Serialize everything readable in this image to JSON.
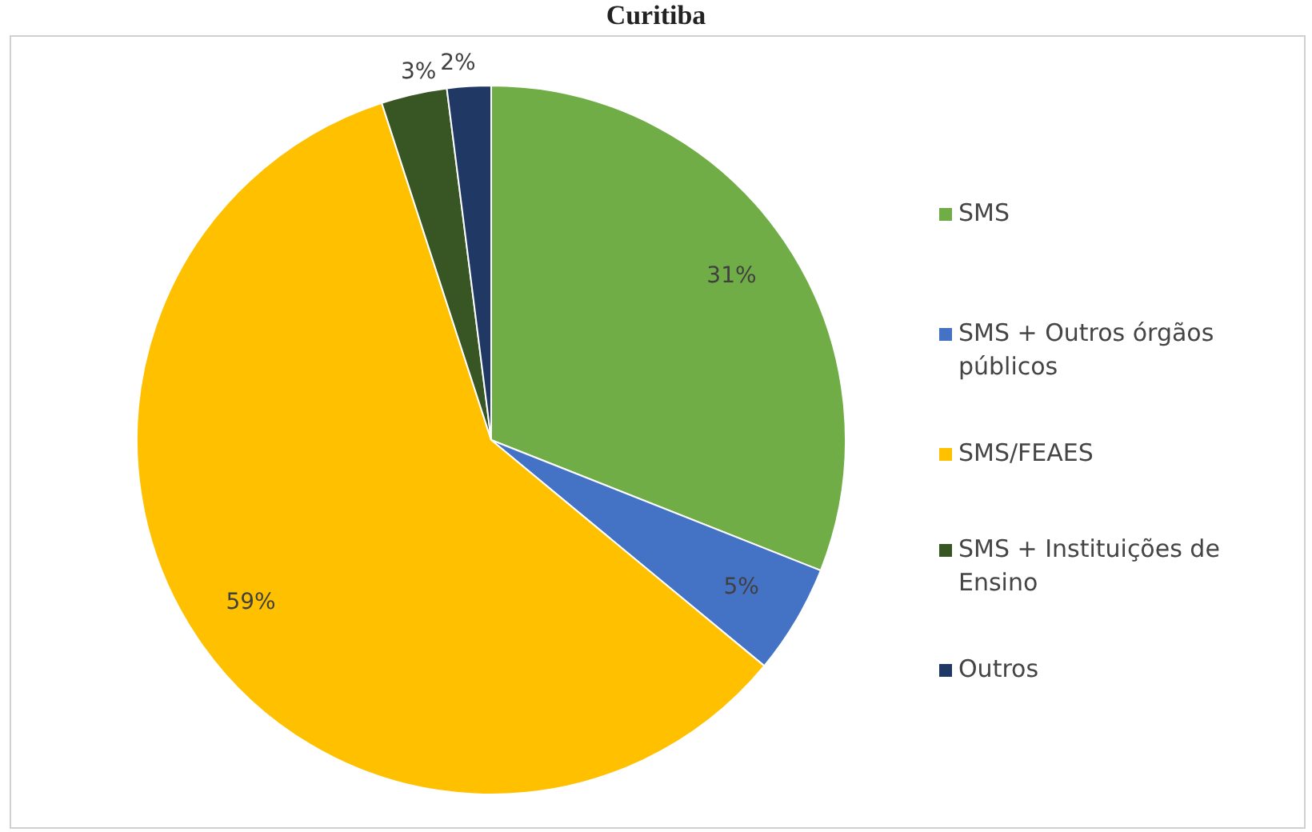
{
  "chart_data": {
    "type": "pie",
    "title": "Curitiba",
    "categories": [
      "SMS",
      "SMS + Outros órgãos públicos",
      "SMS/FEAES",
      "SMS + Instituições de Ensino",
      "Outros"
    ],
    "values": [
      31,
      5,
      59,
      3,
      2
    ],
    "colors": [
      "#70ad47",
      "#4472c4",
      "#ffc000",
      "#375623",
      "#203864"
    ],
    "value_labels": [
      "31%",
      "5%",
      "59%",
      "3%",
      "2%"
    ],
    "legend": "right"
  }
}
